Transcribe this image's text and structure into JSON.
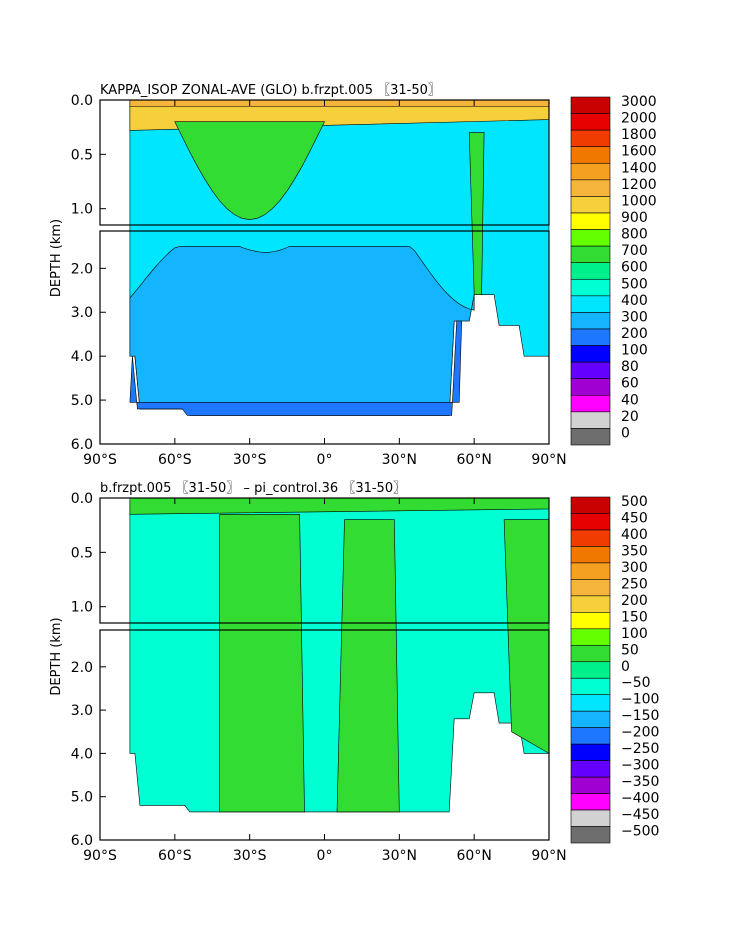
{
  "chart_data": [
    {
      "type": "heatmap",
      "title": "KAPPA_ISOP ZONAL-AVE (GLO) b.frzpt.005 〖31-50〗",
      "ylabel": "DEPTH (km)",
      "x_ticks": [
        "90°S",
        "60°S",
        "30°S",
        "0°",
        "30°N",
        "60°N",
        "90°N"
      ],
      "x_range": [
        -90,
        90
      ],
      "y_ticks_upper": [
        "0.0",
        "0.5",
        "1.0"
      ],
      "y_ticks_lower": [
        "2.0",
        "3.0",
        "4.0",
        "5.0",
        "6.0"
      ],
      "y_range": [
        0,
        6
      ],
      "colorbar": {
        "levels": [
          "3000",
          "2000",
          "1800",
          "1600",
          "1400",
          "1200",
          "1000",
          "900",
          "800",
          "700",
          "600",
          "500",
          "400",
          "300",
          "200",
          "100",
          "80",
          "60",
          "40",
          "20",
          "0"
        ],
        "colors": [
          "#c80000",
          "#e60000",
          "#f03c00",
          "#f07800",
          "#f5a020",
          "#f5b43c",
          "#f5d03c",
          "#ffff00",
          "#64ff00",
          "#32dc32",
          "#00f08c",
          "#00ffd2",
          "#00e6ff",
          "#14b4ff",
          "#1e78ff",
          "#0000ff",
          "#6400ff",
          "#a000d2",
          "#ff00ff",
          "#d2d2d2",
          "#6e6e6e"
        ]
      }
    },
    {
      "type": "heatmap",
      "title": "b.frzpt.005 〖31-50〗 – pi_control.36 〖31-50〗",
      "ylabel": "DEPTH (km)",
      "x_ticks": [
        "90°S",
        "60°S",
        "30°S",
        "0°",
        "30°N",
        "60°N",
        "90°N"
      ],
      "x_range": [
        -90,
        90
      ],
      "y_ticks_upper": [
        "0.0",
        "0.5",
        "1.0"
      ],
      "y_ticks_lower": [
        "2.0",
        "3.0",
        "4.0",
        "5.0",
        "6.0"
      ],
      "y_range": [
        0,
        6
      ],
      "colorbar": {
        "levels": [
          "500",
          "450",
          "400",
          "350",
          "300",
          "250",
          "200",
          "150",
          "100",
          "50",
          "0",
          "−50",
          "−100",
          "−150",
          "−200",
          "−250",
          "−300",
          "−350",
          "−400",
          "−450",
          "−500"
        ],
        "colors": [
          "#c80000",
          "#e60000",
          "#f03c00",
          "#f07800",
          "#f5a020",
          "#f5b43c",
          "#f5d03c",
          "#ffff00",
          "#64ff00",
          "#32dc32",
          "#00f08c",
          "#00ffd2",
          "#00e6ff",
          "#14b4ff",
          "#1e78ff",
          "#0000ff",
          "#6400ff",
          "#a000d2",
          "#ff00ff",
          "#d2d2d2",
          "#6e6e6e"
        ]
      }
    }
  ]
}
